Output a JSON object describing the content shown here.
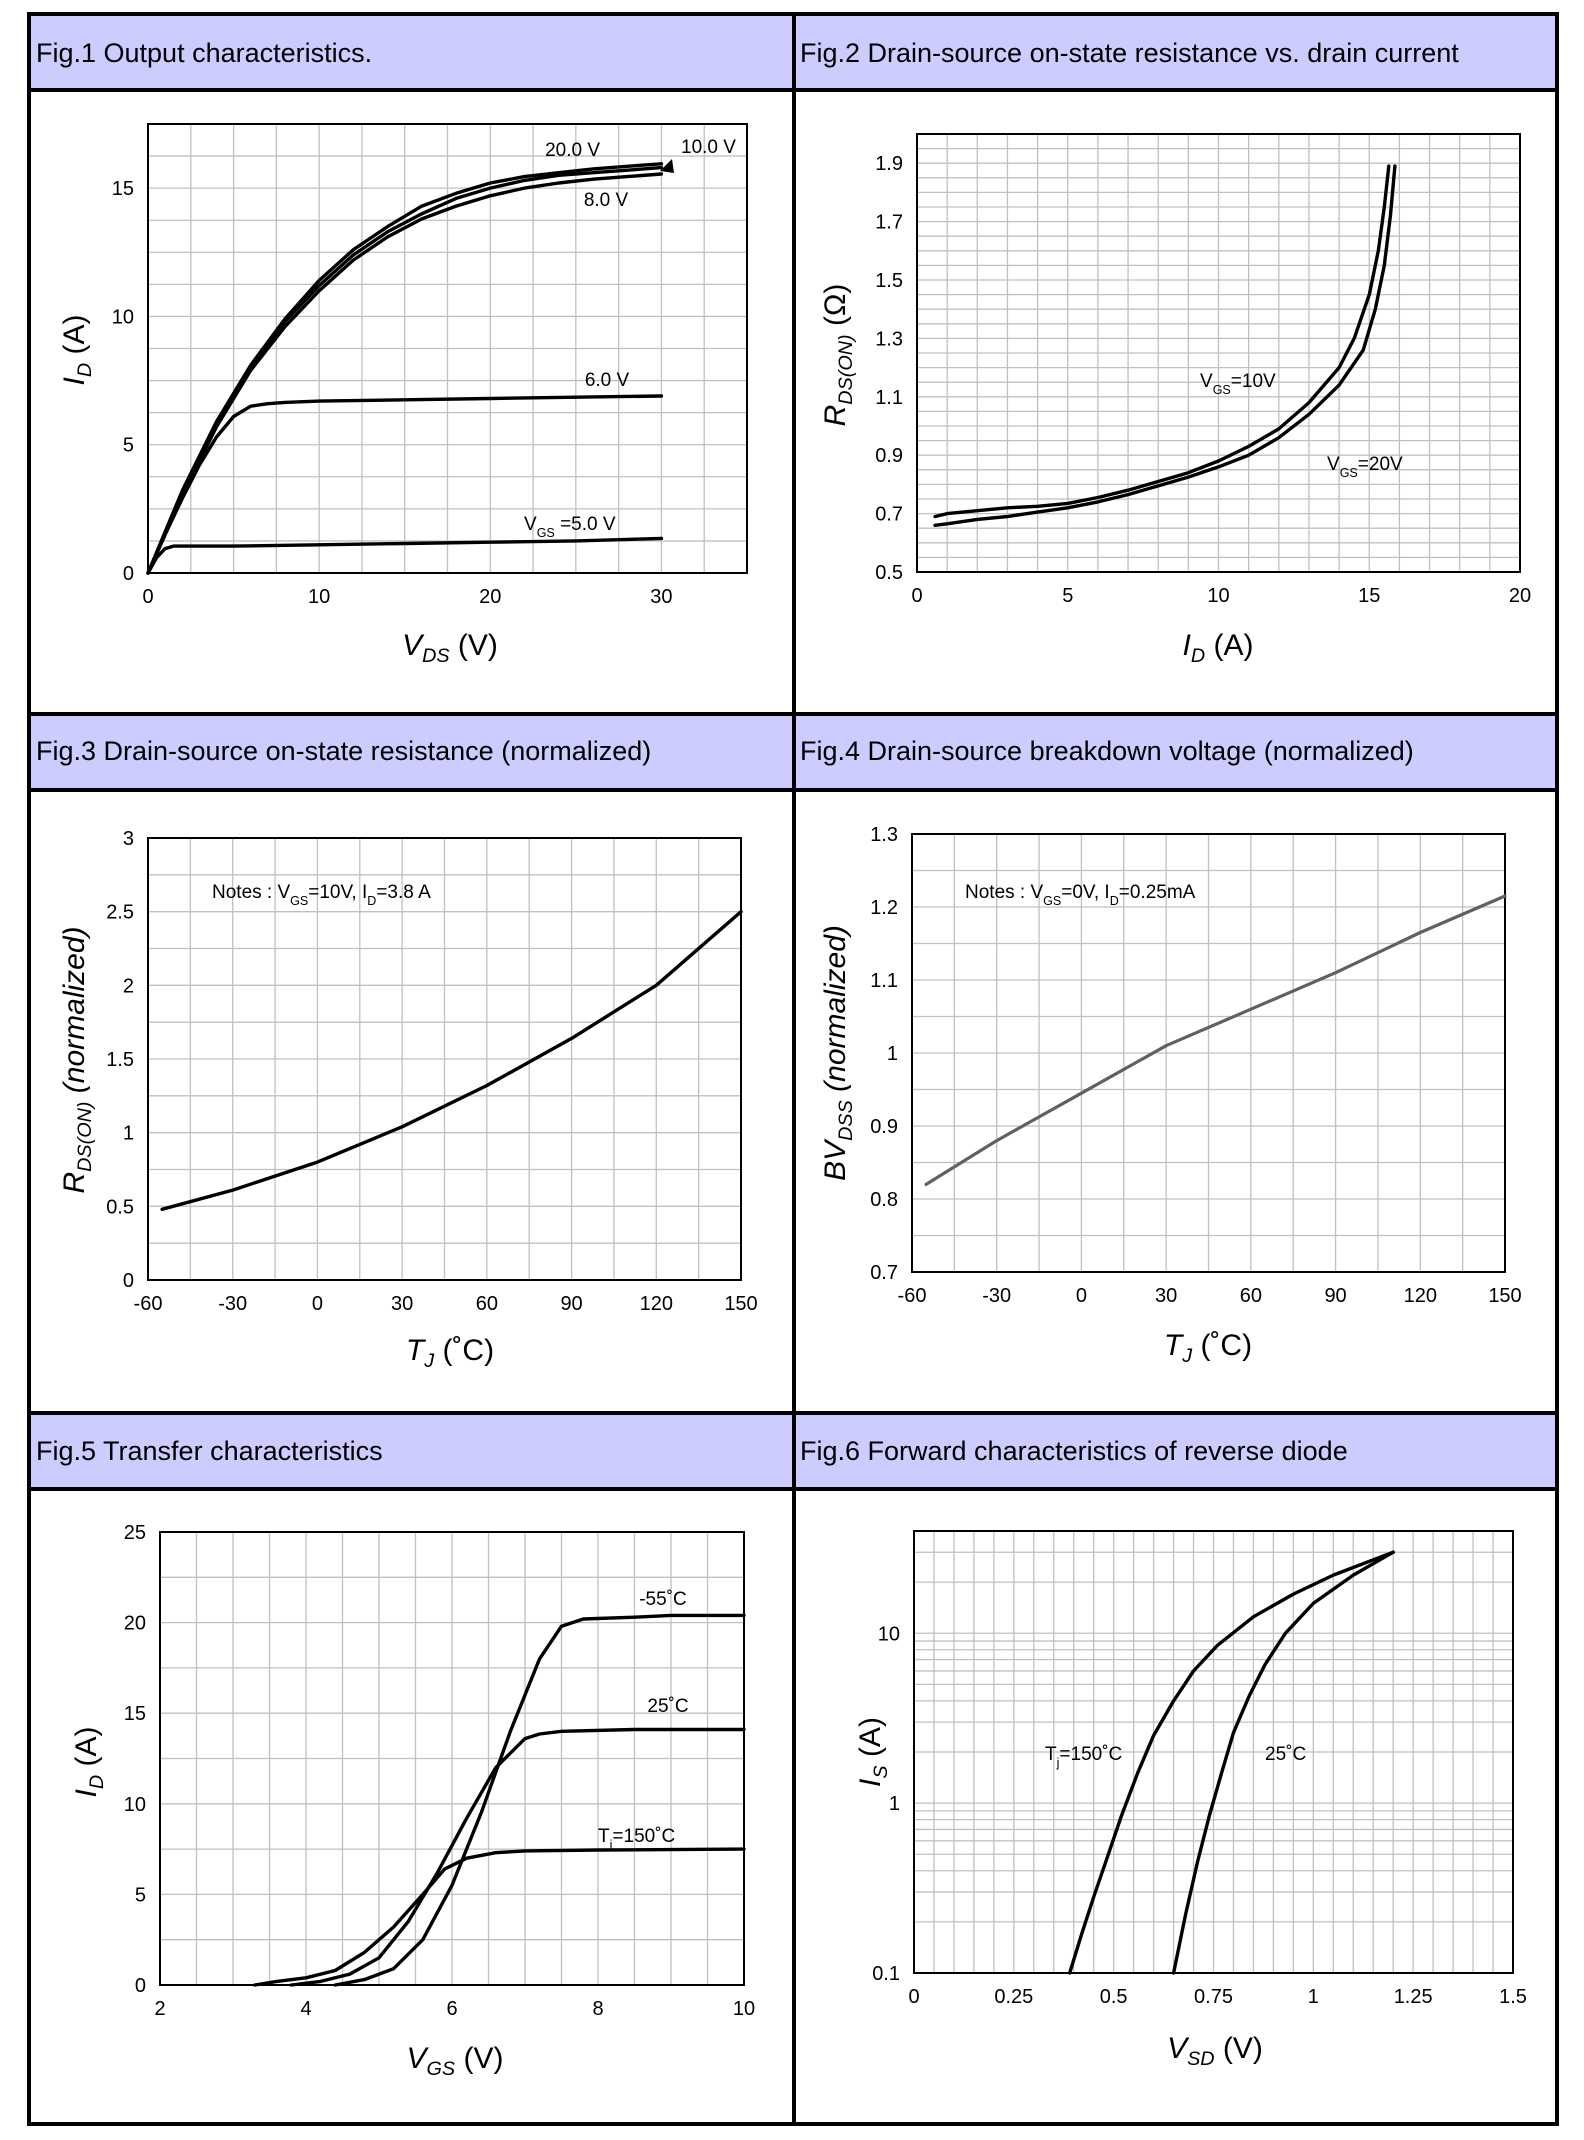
{
  "page": {
    "background": "#ffffff",
    "header_color": "#ccccff",
    "grid_color": "#c0c0c0",
    "line_color": "#000000",
    "gray_line_color": "#606060"
  },
  "chart_data": [
    {
      "type": "line",
      "title": "Fig.1 Output characteristics.",
      "xlabel": "V_DS (V)",
      "ylabel": "I_D (A)",
      "xlim": [
        0,
        35
      ],
      "ylim": [
        0,
        17.5
      ],
      "xticks": [
        0,
        10,
        20,
        30
      ],
      "yticks": [
        0,
        5,
        10,
        15
      ],
      "x_grid_step": 2.5,
      "y_grid_step": 1.25,
      "series": [
        {
          "name": "20.0 V",
          "x": [
            0,
            1,
            2,
            4,
            6,
            8,
            10,
            12,
            14,
            16,
            18,
            20,
            22,
            24,
            26,
            28,
            30
          ],
          "y": [
            0,
            1.6,
            3.2,
            5.9,
            8.1,
            9.9,
            11.4,
            12.6,
            13.5,
            14.3,
            14.8,
            15.2,
            15.45,
            15.6,
            15.75,
            15.85,
            15.95
          ]
        },
        {
          "name": "10.0 V",
          "x": [
            0,
            1,
            2,
            4,
            6,
            8,
            10,
            12,
            14,
            16,
            18,
            20,
            22,
            24,
            26,
            28,
            30
          ],
          "y": [
            0,
            1.55,
            3.1,
            5.8,
            8.0,
            9.8,
            11.2,
            12.4,
            13.3,
            14.0,
            14.6,
            15.0,
            15.3,
            15.5,
            15.6,
            15.7,
            15.8
          ]
        },
        {
          "name": "8.0 V",
          "x": [
            0,
            1,
            2,
            4,
            6,
            8,
            10,
            12,
            14,
            16,
            18,
            20,
            22,
            24,
            26,
            28,
            30
          ],
          "y": [
            0,
            1.5,
            3.0,
            5.7,
            7.9,
            9.6,
            11.0,
            12.2,
            13.1,
            13.8,
            14.3,
            14.7,
            15.0,
            15.2,
            15.35,
            15.45,
            15.55
          ]
        },
        {
          "name": "6.0 V",
          "x": [
            0,
            1,
            2,
            3,
            4,
            5,
            6,
            7,
            8,
            10,
            15,
            20,
            25,
            30
          ],
          "y": [
            0,
            1.5,
            2.9,
            4.2,
            5.3,
            6.1,
            6.5,
            6.6,
            6.65,
            6.7,
            6.75,
            6.8,
            6.85,
            6.9
          ]
        },
        {
          "name": "V_GS =5.0 V",
          "x": [
            0,
            0.5,
            1,
            1.5,
            2,
            5,
            10,
            15,
            20,
            25,
            30
          ],
          "y": [
            0,
            0.6,
            0.95,
            1.05,
            1.05,
            1.05,
            1.1,
            1.15,
            1.2,
            1.25,
            1.35
          ]
        }
      ],
      "curve_labels": [
        "20.0 V",
        "10.0 V",
        "8.0 V",
        "6.0 V",
        "V",
        "GS",
        " =5.0 V"
      ]
    },
    {
      "type": "line",
      "title": "Fig.2 Drain-source on-state resistance vs. drain current",
      "xlabel": "I_D (A)",
      "ylabel": "R_DS(ON) (Ω)",
      "xlim": [
        0,
        20
      ],
      "ylim": [
        0.5,
        2.0
      ],
      "xticks": [
        0,
        5,
        10,
        15,
        20
      ],
      "yticks": [
        0.5,
        0.7,
        0.9,
        1.1,
        1.3,
        1.5,
        1.7,
        1.9
      ],
      "x_grid_step": 1,
      "y_grid_step": 0.05,
      "series": [
        {
          "name": "V_GS=10V",
          "x": [
            0.6,
            1,
            2,
            3,
            4,
            5,
            6,
            7,
            8,
            9,
            10,
            11,
            12,
            13,
            14,
            14.5,
            15,
            15.3,
            15.5,
            15.65
          ],
          "y": [
            0.69,
            0.7,
            0.71,
            0.72,
            0.725,
            0.735,
            0.755,
            0.78,
            0.81,
            0.84,
            0.88,
            0.93,
            0.99,
            1.08,
            1.2,
            1.3,
            1.45,
            1.6,
            1.75,
            1.89
          ]
        },
        {
          "name": "V_GS=20V",
          "x": [
            0.6,
            1,
            2,
            3,
            4,
            5,
            6,
            7,
            8,
            9,
            10,
            11,
            12,
            13,
            14,
            14.8,
            15.2,
            15.5,
            15.7,
            15.85
          ],
          "y": [
            0.66,
            0.665,
            0.68,
            0.69,
            0.705,
            0.72,
            0.74,
            0.765,
            0.795,
            0.825,
            0.86,
            0.9,
            0.96,
            1.04,
            1.14,
            1.26,
            1.4,
            1.55,
            1.72,
            1.89
          ]
        }
      ],
      "curve_labels": [
        "V",
        "GS",
        "=10V",
        "V",
        "GS",
        "=20V"
      ]
    },
    {
      "type": "line",
      "title": "Fig.3 Drain-source on-state resistance (normalized)",
      "xlabel": "T_J (˚C)",
      "ylabel": "R_DS(ON) (normalized)",
      "xlim": [
        -60,
        150
      ],
      "ylim": [
        0,
        3
      ],
      "xticks": [
        -60,
        -30,
        0,
        30,
        60,
        90,
        120,
        150
      ],
      "yticks": [
        0,
        0.5,
        1,
        1.5,
        2,
        2.5,
        3
      ],
      "x_grid_step": 15,
      "y_grid_step": 0.25,
      "notes": [
        "Notes : V",
        "GS",
        "=10V, I",
        "D",
        "=3.8 A"
      ],
      "series": [
        {
          "name": "R_DS(ON)",
          "x": [
            -55,
            -30,
            0,
            30,
            60,
            90,
            120,
            150
          ],
          "y": [
            0.48,
            0.61,
            0.8,
            1.04,
            1.32,
            1.64,
            2.0,
            2.5
          ]
        }
      ]
    },
    {
      "type": "line",
      "title": "Fig.4 Drain-source breakdown voltage (normalized)",
      "xlabel": "T_J (˚C)",
      "ylabel": "BV_DSS (normalized)",
      "xlim": [
        -60,
        150
      ],
      "ylim": [
        0.7,
        1.3
      ],
      "xticks": [
        -60,
        -30,
        0,
        30,
        60,
        90,
        120,
        150
      ],
      "yticks": [
        0.7,
        0.8,
        0.9,
        1,
        1.1,
        1.2,
        1.3
      ],
      "x_grid_step": 15,
      "y_grid_step": 0.05,
      "notes": [
        "Notes : V",
        "GS",
        "=0V, I",
        "D",
        "=0.25mA"
      ],
      "series": [
        {
          "name": "BV_DSS",
          "x": [
            -55,
            -30,
            0,
            30,
            60,
            90,
            120,
            150
          ],
          "y": [
            0.82,
            0.88,
            0.945,
            1.01,
            1.06,
            1.11,
            1.165,
            1.215
          ]
        }
      ]
    },
    {
      "type": "line",
      "title": "Fig.5 Transfer characteristics",
      "xlabel": "V_GS (V)",
      "ylabel": "I_D (A)",
      "xlim": [
        2,
        10
      ],
      "ylim": [
        0,
        25
      ],
      "xticks": [
        2,
        4,
        6,
        8,
        10
      ],
      "yticks": [
        0,
        5,
        10,
        15,
        20,
        25
      ],
      "x_grid_step": 0.5,
      "y_grid_step": 2.5,
      "series": [
        {
          "name": "-55˚C",
          "x": [
            4.4,
            4.8,
            5.2,
            5.6,
            6.0,
            6.4,
            6.8,
            7.2,
            7.5,
            7.8,
            8.5,
            9.0,
            10.0
          ],
          "y": [
            0,
            0.3,
            0.9,
            2.5,
            5.5,
            9.5,
            14.0,
            18.0,
            19.8,
            20.2,
            20.3,
            20.4,
            20.4
          ]
        },
        {
          "name": "25˚C",
          "x": [
            3.8,
            4.2,
            4.6,
            5.0,
            5.4,
            5.8,
            6.2,
            6.6,
            7.0,
            7.2,
            7.5,
            8.5,
            10.0
          ],
          "y": [
            0,
            0.2,
            0.6,
            1.5,
            3.5,
            6.2,
            9.2,
            12.0,
            13.6,
            13.85,
            14.0,
            14.1,
            14.1
          ]
        },
        {
          "name": "Tj=150˚C",
          "x": [
            3.3,
            3.6,
            4.0,
            4.4,
            4.8,
            5.2,
            5.6,
            5.9,
            6.2,
            6.6,
            7.0,
            8.0,
            10.0
          ],
          "y": [
            0,
            0.2,
            0.4,
            0.8,
            1.8,
            3.2,
            5.0,
            6.4,
            7.0,
            7.3,
            7.4,
            7.45,
            7.5
          ]
        }
      ],
      "curve_labels": [
        "-55˚C",
        "25˚C",
        "T",
        "j",
        "=150˚C"
      ]
    },
    {
      "type": "line",
      "title": "Fig.6 Forward characteristics of reverse diode",
      "xlabel": "V_SD (V)",
      "ylabel": "I_S (A)",
      "xlim": [
        0,
        1.5
      ],
      "ylim": [
        0.1,
        40
      ],
      "yscale": "log",
      "xticks": [
        0,
        0.25,
        0.5,
        0.75,
        1,
        1.25,
        1.5
      ],
      "yticks": [
        0.1,
        1,
        10
      ],
      "x_grid_step": 0.05,
      "series": [
        {
          "name": "Tj=150˚C",
          "x": [
            0.39,
            0.42,
            0.45,
            0.48,
            0.52,
            0.56,
            0.6,
            0.65,
            0.7,
            0.76,
            0.85,
            0.95,
            1.05,
            1.2
          ],
          "y": [
            0.1,
            0.17,
            0.28,
            0.45,
            0.85,
            1.5,
            2.5,
            4.0,
            6.0,
            8.5,
            12.5,
            17.0,
            22.0,
            30.0
          ]
        },
        {
          "name": "25˚C",
          "x": [
            0.65,
            0.68,
            0.71,
            0.74,
            0.77,
            0.8,
            0.84,
            0.88,
            0.93,
            1.0,
            1.1,
            1.2
          ],
          "y": [
            0.1,
            0.22,
            0.45,
            0.85,
            1.5,
            2.6,
            4.3,
            6.6,
            10.0,
            15.0,
            22.0,
            30.0
          ]
        }
      ],
      "curve_labels": [
        "T",
        "j",
        "=150˚C",
        "25˚C"
      ]
    }
  ]
}
